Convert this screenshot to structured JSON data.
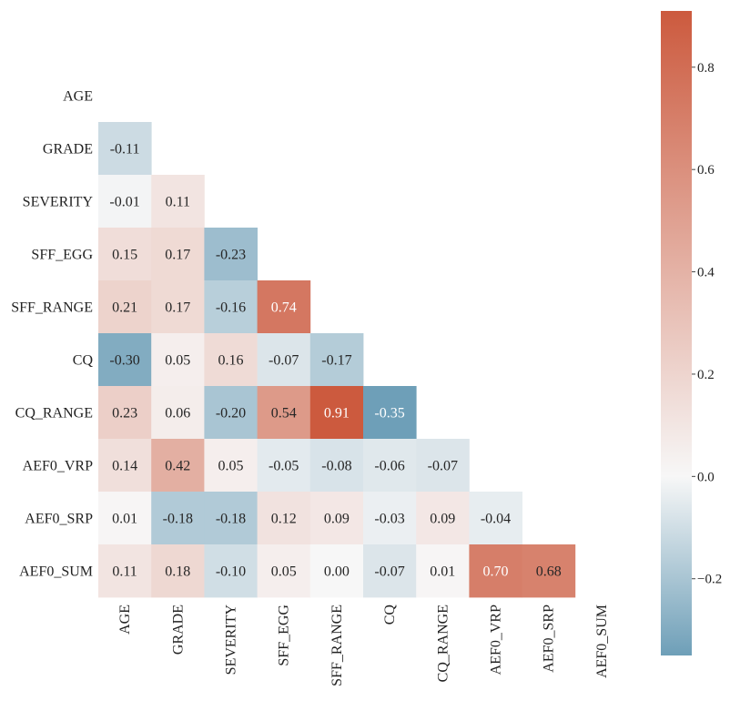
{
  "chart_data": {
    "type": "heatmap",
    "variables": [
      "AGE",
      "GRADE",
      "SEVERITY",
      "SFF_EGG",
      "SFF_RANGE",
      "CQ",
      "CQ_RANGE",
      "AEF0_VRP",
      "AEF0_SRP",
      "AEF0_SUM"
    ],
    "lower_triangle": [
      [],
      [
        "-0.11"
      ],
      [
        "-0.01",
        "0.11"
      ],
      [
        "0.15",
        "0.17",
        "-0.23"
      ],
      [
        "0.21",
        "0.17",
        "-0.16",
        "0.74"
      ],
      [
        "-0.30",
        "0.05",
        "0.16",
        "-0.07",
        "-0.17"
      ],
      [
        "0.23",
        "0.06",
        "-0.20",
        "0.54",
        "0.91",
        "-0.35"
      ],
      [
        "0.14",
        "0.42",
        "0.05",
        "-0.05",
        "-0.08",
        "-0.06",
        "-0.07"
      ],
      [
        "0.01",
        "-0.18",
        "-0.18",
        "0.12",
        "0.09",
        "-0.03",
        "0.09",
        "-0.04"
      ],
      [
        "0.11",
        "0.18",
        "-0.10",
        "0.05",
        "0.00",
        "-0.07",
        "0.01",
        "0.70",
        "0.68"
      ]
    ],
    "colorbar": {
      "min": -0.35,
      "max": 0.91,
      "ticks": [
        "0.8",
        "0.6",
        "0.4",
        "0.2",
        "0.0",
        "−0.2"
      ],
      "tick_values": [
        0.8,
        0.6,
        0.4,
        0.2,
        0.0,
        -0.2
      ]
    },
    "colors": {
      "negative": "#6e9fb8",
      "neutral": "#f7f7f7",
      "positive": "#cc5a3e"
    }
  }
}
